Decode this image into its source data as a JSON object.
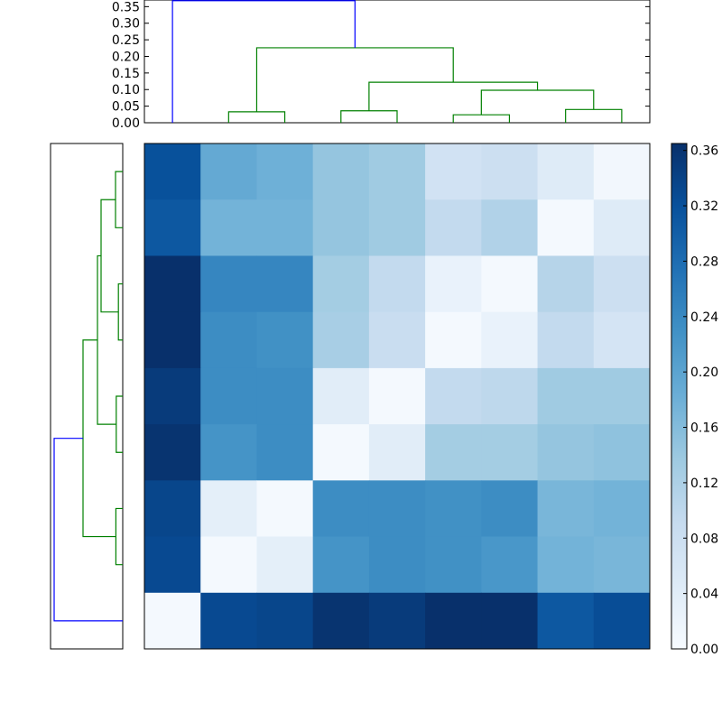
{
  "chart_data": [
    {
      "type": "heatmap",
      "title": "",
      "xlabel": "",
      "ylabel": "",
      "rows": 9,
      "cols": 9,
      "values": [
        [
          0.32,
          0.19,
          0.18,
          0.145,
          0.135,
          0.07,
          0.08,
          0.045,
          0.01
        ],
        [
          0.31,
          0.175,
          0.175,
          0.145,
          0.135,
          0.095,
          0.115,
          0.005,
          0.045
        ],
        [
          0.365,
          0.245,
          0.245,
          0.13,
          0.095,
          0.025,
          0.005,
          0.11,
          0.08
        ],
        [
          0.365,
          0.235,
          0.23,
          0.125,
          0.085,
          0.005,
          0.025,
          0.095,
          0.065
        ],
        [
          0.35,
          0.235,
          0.235,
          0.04,
          0.005,
          0.095,
          0.1,
          0.135,
          0.135
        ],
        [
          0.36,
          0.225,
          0.235,
          0.005,
          0.04,
          0.13,
          0.13,
          0.145,
          0.15
        ],
        [
          0.335,
          0.035,
          0.005,
          0.235,
          0.235,
          0.23,
          0.235,
          0.17,
          0.175
        ],
        [
          0.33,
          0.005,
          0.035,
          0.225,
          0.235,
          0.23,
          0.22,
          0.175,
          0.17
        ],
        [
          0.005,
          0.33,
          0.335,
          0.36,
          0.35,
          0.365,
          0.365,
          0.31,
          0.325
        ]
      ],
      "colormap": "Blues",
      "vmin": 0.0,
      "vmax": 0.365,
      "colorbar_ticks": [
        "0.00",
        "0.04",
        "0.08",
        "0.12",
        "0.16",
        "0.20",
        "0.24",
        "0.28",
        "0.32",
        "0.36"
      ]
    },
    {
      "type": "dendrogram",
      "orientation": "top",
      "ylim": [
        0,
        0.37
      ],
      "ytick_labels": [
        "0.00",
        "0.05",
        "0.10",
        "0.15",
        "0.20",
        "0.25",
        "0.30",
        "0.35"
      ],
      "leaf_count": 9,
      "links": [
        {
          "left_leaf": 1,
          "right_leaf": 2,
          "height": 0.033,
          "color": "#008000"
        },
        {
          "left_leaf": 3,
          "right_leaf": 4,
          "height": 0.036,
          "color": "#008000"
        },
        {
          "left_leaf": 5,
          "right_leaf": 6,
          "height": 0.024,
          "color": "#008000"
        },
        {
          "left_leaf": 7,
          "right_leaf": 8,
          "height": 0.04,
          "color": "#008000"
        },
        {
          "left_x": 5.5,
          "right_x": 7.5,
          "left_h": 0.024,
          "right_h": 0.04,
          "height": 0.098,
          "color": "#008000"
        },
        {
          "left_x": 3.5,
          "right_x": 6.5,
          "left_h": 0.036,
          "right_h": 0.098,
          "height": 0.122,
          "color": "#008000"
        },
        {
          "left_x": 1.5,
          "right_x": 5.0,
          "left_h": 0.033,
          "right_h": 0.122,
          "height": 0.226,
          "color": "#008000"
        },
        {
          "left_x": 0.0,
          "right_x": 3.25,
          "left_h": 0.0,
          "right_h": 0.226,
          "height": 0.368,
          "color": "#0000ff"
        }
      ]
    },
    {
      "type": "dendrogram",
      "orientation": "left",
      "leaf_count": 9,
      "links": [
        {
          "top_leaf": 0,
          "bottom_leaf": 1,
          "height": 0.02,
          "color": "#008000"
        },
        {
          "top_leaf": 2,
          "bottom_leaf": 3,
          "height": 0.012,
          "color": "#008000"
        },
        {
          "top_x": 0.5,
          "bottom_x": 2.5,
          "top_h": 0.02,
          "bottom_h": 0.012,
          "height": 0.06,
          "color": "#008000"
        },
        {
          "top_leaf": 4,
          "bottom_leaf": 5,
          "height": 0.018,
          "color": "#008000"
        },
        {
          "top_x": 1.5,
          "bottom_x": 4.5,
          "top_h": 0.06,
          "bottom_h": 0.018,
          "height": 0.07,
          "color": "#008000"
        },
        {
          "top_leaf": 6,
          "bottom_leaf": 7,
          "height": 0.019,
          "color": "#008000"
        },
        {
          "top_x": 3.0,
          "bottom_x": 6.5,
          "top_h": 0.07,
          "bottom_h": 0.019,
          "height": 0.11,
          "color": "#008000"
        },
        {
          "top_x": 4.75,
          "bottom_x": 8.0,
          "top_h": 0.11,
          "bottom_h": 0.0,
          "height": 0.19,
          "color": "#0000ff"
        }
      ]
    }
  ]
}
